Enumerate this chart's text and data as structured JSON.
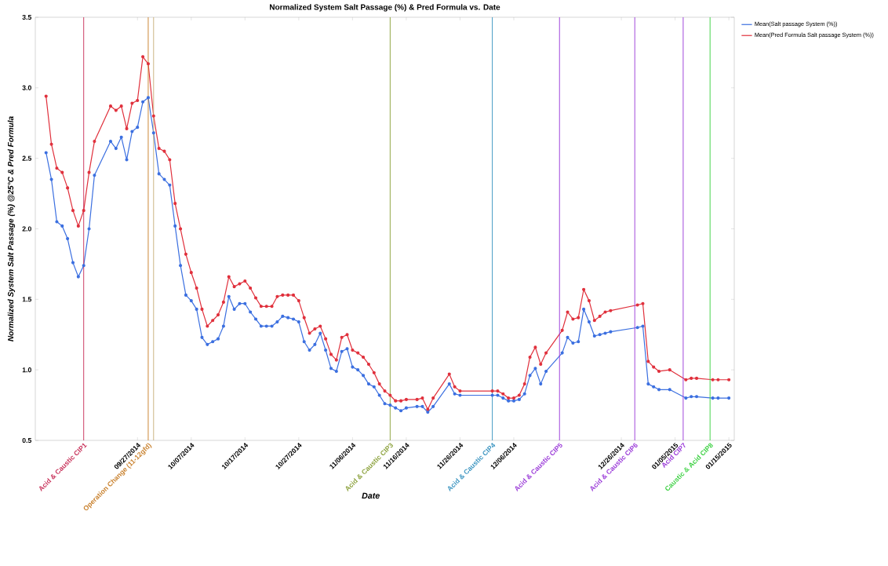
{
  "chart_data": {
    "type": "line",
    "title": "Normalized System Salt Passage (%) & Pred Formula  vs. Date",
    "xlabel": "Date",
    "ylabel": "Normalized System Salt Passage (%) @25°C & Pred Formula",
    "x": [
      "2014-09-10",
      "2014-09-11",
      "2014-09-12",
      "2014-09-13",
      "2014-09-14",
      "2014-09-15",
      "2014-09-16",
      "2014-09-17",
      "2014-09-18",
      "2014-09-19",
      "2014-09-22",
      "2014-09-23",
      "2014-09-24",
      "2014-09-25",
      "2014-09-26",
      "2014-09-27",
      "2014-09-28",
      "2014-09-29",
      "2014-09-30",
      "2014-10-01",
      "2014-10-02",
      "2014-10-03",
      "2014-10-04",
      "2014-10-05",
      "2014-10-06",
      "2014-10-07",
      "2014-10-08",
      "2014-10-09",
      "2014-10-10",
      "2014-10-11",
      "2014-10-12",
      "2014-10-13",
      "2014-10-14",
      "2014-10-15",
      "2014-10-16",
      "2014-10-17",
      "2014-10-18",
      "2014-10-19",
      "2014-10-20",
      "2014-10-21",
      "2014-10-22",
      "2014-10-23",
      "2014-10-24",
      "2014-10-25",
      "2014-10-26",
      "2014-10-27",
      "2014-10-28",
      "2014-10-29",
      "2014-10-30",
      "2014-10-31",
      "2014-11-01",
      "2014-11-02",
      "2014-11-03",
      "2014-11-04",
      "2014-11-05",
      "2014-11-06",
      "2014-11-07",
      "2014-11-08",
      "2014-11-09",
      "2014-11-10",
      "2014-11-11",
      "2014-11-12",
      "2014-11-13",
      "2014-11-14",
      "2014-11-15",
      "2014-11-16",
      "2014-11-18",
      "2014-11-19",
      "2014-11-20",
      "2014-11-21",
      "2014-11-24",
      "2014-11-25",
      "2014-11-26",
      "2014-12-02",
      "2014-12-03",
      "2014-12-04",
      "2014-12-05",
      "2014-12-06",
      "2014-12-07",
      "2014-12-08",
      "2014-12-09",
      "2014-12-10",
      "2014-12-11",
      "2014-12-12",
      "2014-12-15",
      "2014-12-16",
      "2014-12-17",
      "2014-12-18",
      "2014-12-19",
      "2014-12-20",
      "2014-12-21",
      "2014-12-22",
      "2014-12-23",
      "2014-12-24",
      "2014-12-29",
      "2014-12-30",
      "2014-12-31",
      "2015-01-01",
      "2015-01-02",
      "2015-01-04",
      "2015-01-07",
      "2015-01-08",
      "2015-01-09",
      "2015-01-12",
      "2015-01-13",
      "2015-01-15"
    ],
    "series": [
      {
        "name": "Mean(Salt passage System (%))",
        "color": "#3b6fe0",
        "values": [
          2.54,
          2.35,
          2.05,
          2.02,
          1.93,
          1.76,
          1.66,
          1.74,
          2.0,
          2.38,
          2.62,
          2.57,
          2.65,
          2.49,
          2.69,
          2.72,
          2.9,
          2.93,
          2.68,
          2.39,
          2.35,
          2.31,
          2.02,
          1.74,
          1.53,
          1.49,
          1.43,
          1.23,
          1.18,
          1.2,
          1.22,
          1.31,
          1.52,
          1.43,
          1.47,
          1.47,
          1.41,
          1.36,
          1.31,
          1.31,
          1.31,
          1.34,
          1.38,
          1.37,
          1.36,
          1.34,
          1.2,
          1.14,
          1.18,
          1.26,
          1.14,
          1.01,
          0.99,
          1.13,
          1.15,
          1.02,
          1.0,
          0.96,
          0.9,
          0.88,
          0.82,
          0.76,
          0.75,
          0.73,
          0.71,
          0.73,
          0.74,
          0.74,
          0.7,
          0.74,
          0.9,
          0.83,
          0.82,
          0.82,
          0.82,
          0.8,
          0.78,
          0.78,
          0.79,
          0.83,
          0.96,
          1.01,
          0.9,
          0.99,
          1.12,
          1.23,
          1.19,
          1.2,
          1.43,
          1.34,
          1.24,
          1.25,
          1.26,
          1.27,
          1.3,
          1.31,
          0.9,
          0.88,
          0.86,
          0.86,
          0.8,
          0.81,
          0.81,
          0.8,
          0.8,
          0.8
        ]
      },
      {
        "name": "Mean(Pred Formula Salt passage System (%))",
        "color": "#e0303c",
        "values": [
          2.94,
          2.6,
          2.43,
          2.4,
          2.29,
          2.13,
          2.02,
          2.13,
          2.4,
          2.62,
          2.87,
          2.84,
          2.87,
          2.71,
          2.89,
          2.91,
          3.22,
          3.17,
          2.8,
          2.57,
          2.55,
          2.49,
          2.18,
          2.0,
          1.82,
          1.69,
          1.58,
          1.43,
          1.31,
          1.35,
          1.39,
          1.48,
          1.66,
          1.59,
          1.61,
          1.63,
          1.58,
          1.51,
          1.45,
          1.45,
          1.45,
          1.52,
          1.53,
          1.53,
          1.53,
          1.49,
          1.37,
          1.26,
          1.29,
          1.31,
          1.22,
          1.11,
          1.07,
          1.23,
          1.25,
          1.14,
          1.12,
          1.09,
          1.04,
          0.98,
          0.9,
          0.85,
          0.82,
          0.78,
          0.78,
          0.79,
          0.79,
          0.8,
          0.72,
          0.8,
          0.97,
          0.88,
          0.85,
          0.85,
          0.85,
          0.83,
          0.8,
          0.8,
          0.82,
          0.9,
          1.09,
          1.16,
          1.04,
          1.12,
          1.28,
          1.41,
          1.36,
          1.37,
          1.57,
          1.49,
          1.35,
          1.38,
          1.41,
          1.42,
          1.46,
          1.47,
          1.06,
          1.02,
          0.99,
          1.0,
          0.93,
          0.94,
          0.94,
          0.93,
          0.93,
          0.93
        ]
      }
    ],
    "xlim": [
      "2014-09-08",
      "2015-01-16"
    ],
    "ylim": [
      0.5,
      3.5
    ],
    "xticks": [
      {
        "value": "2014-09-27",
        "label": "09/27/2014"
      },
      {
        "value": "2014-10-07",
        "label": "10/07/2014"
      },
      {
        "value": "2014-10-17",
        "label": "10/17/2014"
      },
      {
        "value": "2014-10-27",
        "label": "10/27/2014"
      },
      {
        "value": "2014-11-06",
        "label": "11/06/2014"
      },
      {
        "value": "2014-11-16",
        "label": "11/16/2014"
      },
      {
        "value": "2014-11-26",
        "label": "11/26/2014"
      },
      {
        "value": "2014-12-06",
        "label": "12/06/2014"
      },
      {
        "value": "2014-12-26",
        "label": "12/26/2014"
      },
      {
        "value": "2015-01-05",
        "label": "01/05/2015"
      },
      {
        "value": "2015-01-15",
        "label": "01/15/2015"
      }
    ],
    "yticks": [
      {
        "value": 0.5,
        "label": "0.5"
      },
      {
        "value": 1,
        "label": "1.0"
      },
      {
        "value": 1.5,
        "label": "1.5"
      },
      {
        "value": 2,
        "label": "2.0"
      },
      {
        "value": 2.5,
        "label": "2.5"
      },
      {
        "value": 3,
        "label": "3.0"
      },
      {
        "value": 3.5,
        "label": "3.5"
      }
    ],
    "ref_lines": [
      {
        "axis": "x",
        "value": "2014-09-17",
        "label": "Acid & Caustic CIP1",
        "color": "#c8325a"
      },
      {
        "axis": "x",
        "value": "2014-09-29",
        "label": "Operation Change (11-12gfd)",
        "color": "#c87f2a"
      },
      {
        "axis": "x",
        "value": "2014-09-30",
        "color": "#c8b07a"
      },
      {
        "axis": "x",
        "value": "2014-11-13",
        "label": "Acid & Caustic CIP3",
        "color": "#8aa03a"
      },
      {
        "axis": "x",
        "value": "2014-12-02",
        "label": "Acid & Caustic CIP4",
        "color": "#3a94c0"
      },
      {
        "axis": "x",
        "value": "2014-12-14T12:00",
        "label": "Acid & Caustic CIP5",
        "color": "#9a3ad8"
      },
      {
        "axis": "x",
        "value": "2014-12-28T12:00",
        "label": "Acid & Caustic CIP6",
        "color": "#9a3ad8"
      },
      {
        "axis": "x",
        "value": "2015-01-06T12:00",
        "label": "Acid CIP7",
        "color": "#9a3ad8"
      },
      {
        "axis": "x",
        "value": "2015-01-11T12:00",
        "label": "Caustic & Acid CIP8",
        "color": "#3ad040"
      }
    ],
    "marker": "circle",
    "legend": "top right"
  }
}
